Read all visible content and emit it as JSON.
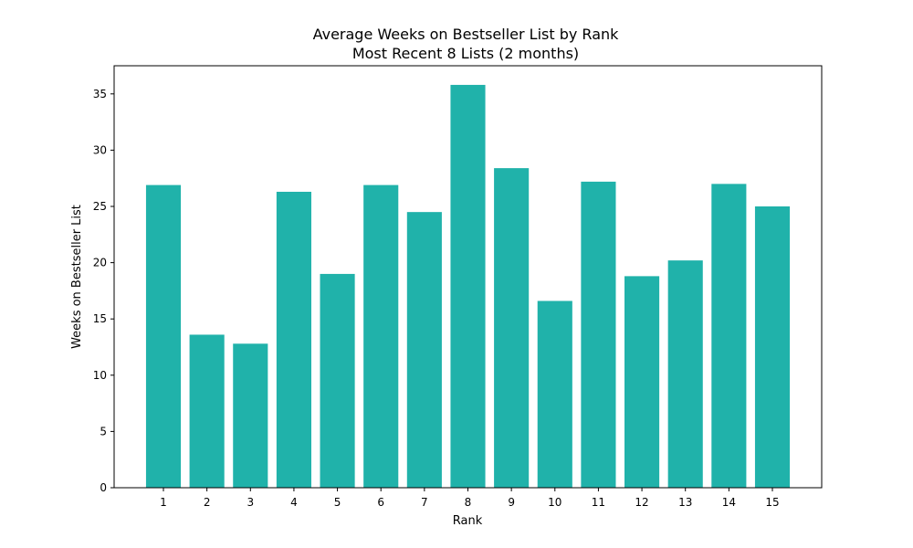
{
  "chart_data": {
    "type": "bar",
    "title": "Average Weeks on Bestseller List by Rank",
    "subtitle": "Most Recent 8 Lists (2 months)",
    "xlabel": "Rank",
    "ylabel": "Weeks on Bestseller List",
    "categories": [
      "1",
      "2",
      "3",
      "4",
      "5",
      "6",
      "7",
      "8",
      "9",
      "10",
      "11",
      "12",
      "13",
      "14",
      "15"
    ],
    "values": [
      26.9,
      13.6,
      12.8,
      26.3,
      19.0,
      26.9,
      24.5,
      35.8,
      28.4,
      16.6,
      27.2,
      18.8,
      20.2,
      27.0,
      25.0
    ],
    "ylim": [
      0,
      37.5
    ],
    "yticks": [
      0,
      5,
      10,
      15,
      20,
      25,
      30,
      35
    ],
    "bar_color": "#20b2aa",
    "grid": false,
    "legend": "none"
  }
}
